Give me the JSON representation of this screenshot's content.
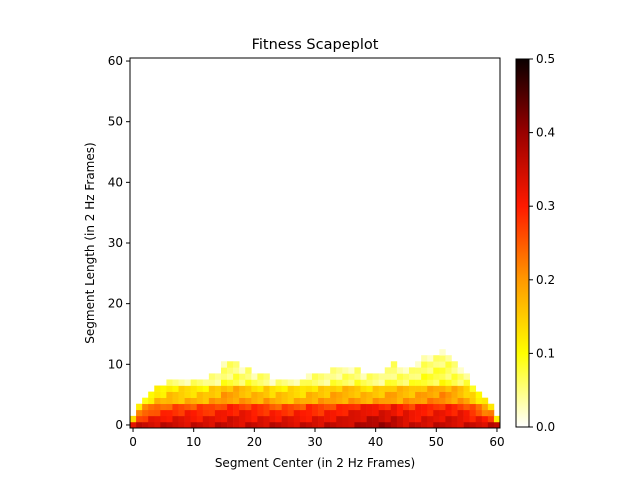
{
  "chart_data": {
    "type": "heatmap",
    "title": "Fitness Scapeplot",
    "xlabel": "Segment Center (in 2 Hz Frames)",
    "ylabel": "Segment Length (in 2 Hz Frames)",
    "xlim": [
      -0.5,
      60.5
    ],
    "ylim": [
      -0.5,
      60.5
    ],
    "xticks": [
      0,
      10,
      20,
      30,
      40,
      50,
      60
    ],
    "yticks": [
      0,
      10,
      20,
      30,
      40,
      50,
      60
    ],
    "colorbar": {
      "colormap": "gist_heat_r",
      "range": [
        0,
        0.5
      ],
      "ticks": [
        "0.0",
        "0.1",
        "0.2",
        "0.3",
        "0.4",
        "0.5"
      ]
    },
    "num_frames": 61,
    "max_length_by_center": [
      1,
      3,
      4,
      5,
      6,
      6,
      7,
      7,
      7,
      7,
      7,
      7,
      7,
      8,
      8,
      10,
      10,
      10,
      9,
      9,
      8,
      8,
      8,
      7,
      7,
      7,
      7,
      7,
      7,
      8,
      8,
      8,
      8,
      9,
      9,
      9,
      9,
      9,
      8,
      8,
      8,
      8,
      9,
      10,
      9,
      9,
      9,
      10,
      11,
      11,
      11,
      12,
      11,
      10,
      9,
      8,
      6,
      5,
      4,
      3,
      1
    ],
    "typical_fitness": {
      "core_rows_0_to_3": 0.3,
      "middle_rows_4_to_6": 0.22,
      "upper_rows": 0.1,
      "peak_near_center_40": 0.34
    }
  }
}
